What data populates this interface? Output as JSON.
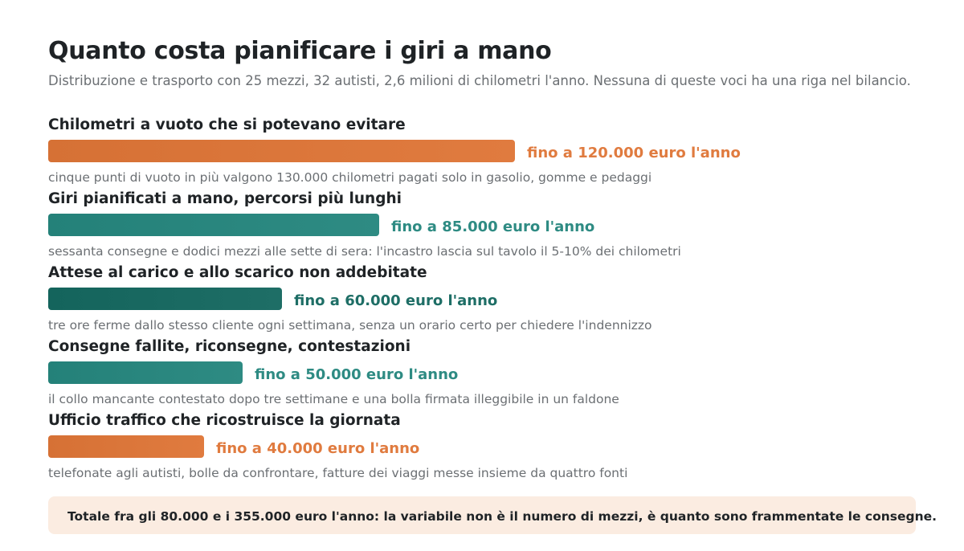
{
  "title": "Quanto costa pianificare i giri a mano",
  "subtitle": "Distribuzione e trasporto con 25 mezzi, 32 autisti, 2,6 milioni di chilometri l'anno. Nessuna di queste voci ha una riga nel bilancio.",
  "colors": {
    "orange": "#e07b3f",
    "teal": "#2e8b83",
    "dark_teal": "#1e6e66"
  },
  "chart_data": {
    "type": "bar",
    "orientation": "horizontal",
    "unit": "euro l'anno",
    "max_value": 120000,
    "items": [
      {
        "label": "Chilometri a vuoto che si potevano evitare",
        "value": 120000,
        "value_label": "fino a 120.000 euro l'anno",
        "note": "cinque punti di vuoto in più valgono 130.000 chilometri pagati solo in gasolio, gomme e pedaggi",
        "color": "#e07b3f"
      },
      {
        "label": "Giri pianificati a mano, percorsi più lunghi",
        "value": 85000,
        "value_label": "fino a 85.000 euro l'anno",
        "note": "sessanta consegne e dodici mezzi alle sette di sera: l'incastro lascia sul tavolo il 5-10% dei chilometri",
        "color": "#2e8b83"
      },
      {
        "label": "Attese al carico e allo scarico non addebitate",
        "value": 60000,
        "value_label": "fino a 60.000 euro l'anno",
        "note": "tre ore ferme dallo stesso cliente ogni settimana, senza un orario certo per chiedere l'indennizzo",
        "color": "#1e6e66"
      },
      {
        "label": "Consegne fallite, riconsegne, contestazioni",
        "value": 50000,
        "value_label": "fino a 50.000 euro l'anno",
        "note": "il collo mancante contestato dopo tre settimane e una bolla firmata illeggibile in un faldone",
        "color": "#2e8b83"
      },
      {
        "label": "Ufficio traffico che ricostruisce la giornata",
        "value": 40000,
        "value_label": "fino a 40.000 euro l'anno",
        "note": "telefonate agli autisti, bolle da confrontare, fatture dei viaggi messe insieme da quattro fonti",
        "color": "#e07b3f"
      }
    ]
  },
  "total": "Totale fra gli 80.000 e i 355.000 euro l'anno: la variabile non è il numero di mezzi, è quanto sono frammentate le consegne."
}
